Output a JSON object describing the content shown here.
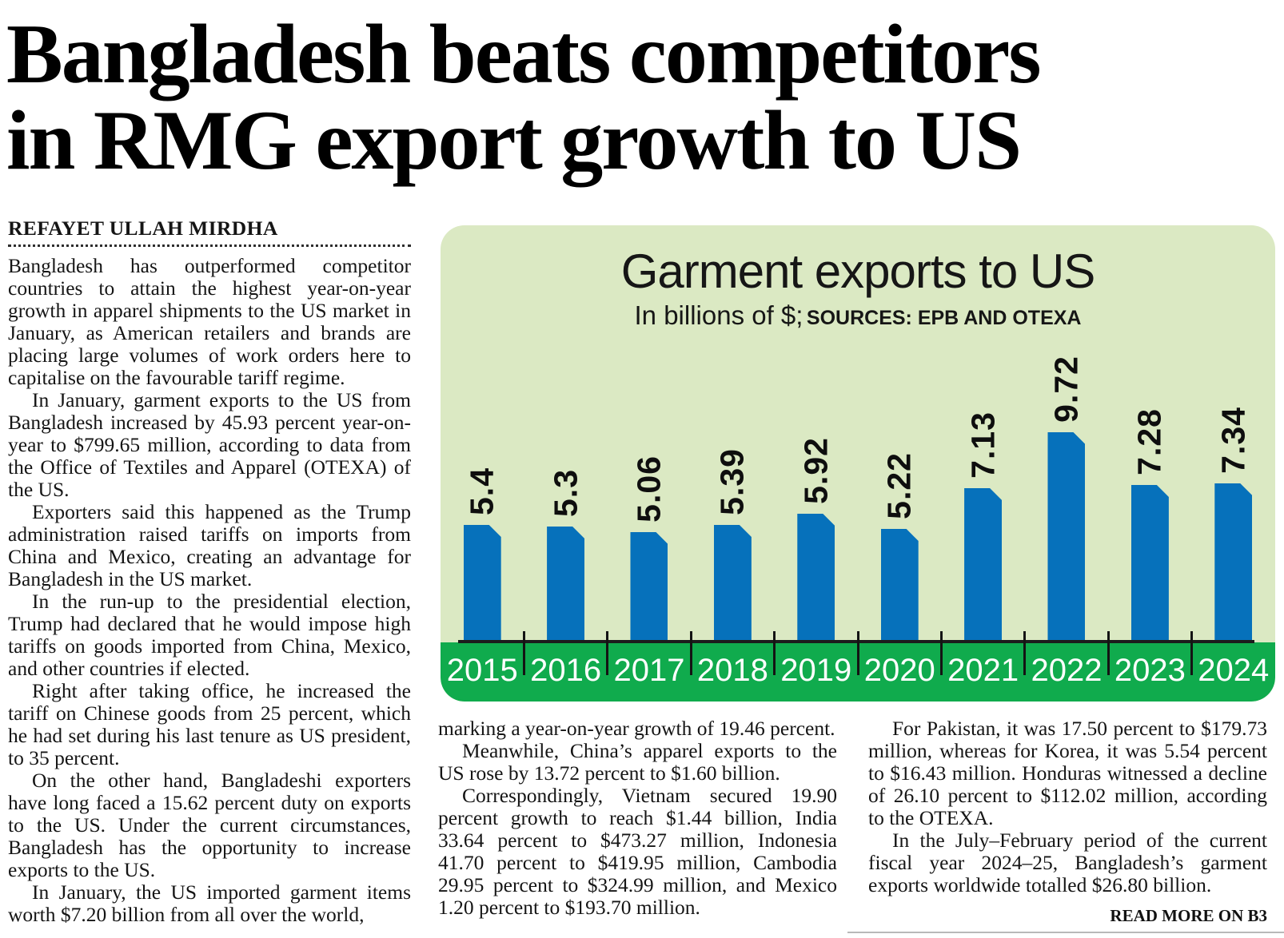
{
  "article": {
    "headline_lines": [
      "Bangladesh beats competitors",
      "in RMG export growth to US"
    ],
    "byline": "REFAYET ULLAH MIRDHA",
    "read_more": "READ MORE ON B3",
    "columns": [
      [
        {
          "indent": false,
          "text": "Bangladesh has outperformed competitor countries to attain the highest year-on-year growth in apparel shipments to the US market in January, as American retailers and brands are placing large volumes of work orders here to capitalise on the favourable tariff regime."
        },
        {
          "indent": true,
          "text": "In January, garment exports to the US from Bangladesh increased by 45.93 percent year-on-year to $799.65 million, according to data from the Office of Textiles and Apparel (OTEXA) of the US."
        },
        {
          "indent": true,
          "text": "Exporters said this happened as the Trump administration raised tariffs on imports from China and Mexico, creating an advantage for Bangladesh in the US market."
        },
        {
          "indent": true,
          "text": "In the run-up to the presidential election, Trump had declared that he would impose high tariffs on goods imported from China, Mexico, and other countries if elected."
        },
        {
          "indent": true,
          "text": "Right after taking office, he increased the tariff on Chinese goods from 25 percent, which he had set during his last tenure as US president, to 35 percent."
        },
        {
          "indent": true,
          "text": "On the other hand, Bangladeshi exporters have long faced a 15.62 percent duty on exports to the US. Under the current circumstances, Bangladesh has the opportunity to increase exports to the US."
        },
        {
          "indent": true,
          "text": "In January, the US imported garment items worth $7.20 billion from all over the world,"
        }
      ],
      [
        {
          "indent": false,
          "text": "marking a year-on-year growth of 19.46 percent."
        },
        {
          "indent": true,
          "text": "Meanwhile, China’s apparel exports to the US rose by 13.72 percent to $1.60 billion."
        },
        {
          "indent": true,
          "text": "Correspondingly, Vietnam secured 19.90 percent growth to reach $1.44 billion, India 33.64 percent to $473.27 million, Indonesia 41.70 percent to $419.95 million, Cambodia 29.95 percent to $324.99 million, and Mexico 1.20 percent to $193.70 million."
        }
      ],
      [
        {
          "indent": true,
          "text": "For Pakistan, it was 17.50 percent to $179.73 million, whereas for Korea, it was 5.54 percent to $16.43 million. Honduras witnessed a decline of 26.10 percent to $112.02 million, according to the OTEXA."
        },
        {
          "indent": true,
          "text": "In the July–February period of the current fiscal year 2024–25, Bangladesh’s garment exports worldwide totalled $26.80 billion."
        }
      ]
    ]
  },
  "chart_data": {
    "type": "bar",
    "title": "Garment exports to US",
    "subtitle": "In billions of $;",
    "source": "SOURCES: EPB AND OTEXA",
    "categories": [
      "2015",
      "2016",
      "2017",
      "2018",
      "2019",
      "2020",
      "2021",
      "2022",
      "2023",
      "2024"
    ],
    "values": [
      5.4,
      5.3,
      5.06,
      5.39,
      5.92,
      5.22,
      7.13,
      9.72,
      7.28,
      7.34
    ],
    "ylim": [
      0,
      10
    ],
    "legend": "none",
    "grid": false,
    "colors": {
      "bar": "#0671bb",
      "panel_bg": "#dbe9c3",
      "year_band": "#10ab4d",
      "axis": "#1c1c1c",
      "value_label": "#0e0e0e",
      "year_text": "#ffffff"
    }
  }
}
